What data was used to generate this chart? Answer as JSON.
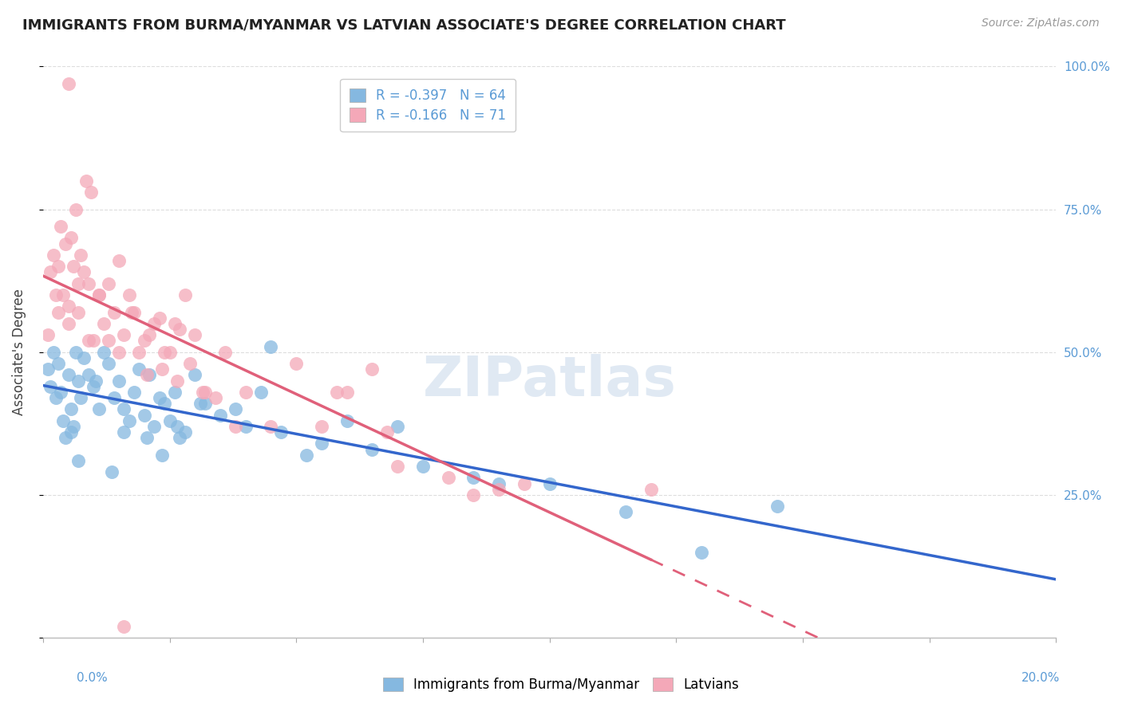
{
  "title": "IMMIGRANTS FROM BURMA/MYANMAR VS LATVIAN ASSOCIATE'S DEGREE CORRELATION CHART",
  "source": "Source: ZipAtlas.com",
  "ylabel": "Associate's Degree",
  "blue_label": "Immigrants from Burma/Myanmar",
  "pink_label": "Latvians",
  "blue_R": "-0.397",
  "blue_N": "64",
  "pink_R": "-0.166",
  "pink_N": "71",
  "blue_color": "#85b8e0",
  "pink_color": "#f4a8b8",
  "blue_line_color": "#3366cc",
  "pink_line_color": "#e0607a",
  "watermark": "ZIPatlas",
  "xlim": [
    0.0,
    20.0
  ],
  "ylim": [
    0.0,
    100.0
  ],
  "blue_scatter_x": [
    0.1,
    0.15,
    0.2,
    0.25,
    0.3,
    0.35,
    0.4,
    0.45,
    0.5,
    0.55,
    0.6,
    0.65,
    0.7,
    0.75,
    0.8,
    0.9,
    1.0,
    1.1,
    1.2,
    1.3,
    1.4,
    1.5,
    1.6,
    1.7,
    1.8,
    1.9,
    2.0,
    2.1,
    2.2,
    2.3,
    2.4,
    2.5,
    2.6,
    2.7,
    2.8,
    3.0,
    3.2,
    3.5,
    3.8,
    4.0,
    4.3,
    4.7,
    5.2,
    5.5,
    6.0,
    6.5,
    7.0,
    7.5,
    8.5,
    9.0,
    10.0,
    11.5,
    13.0,
    14.5,
    0.55,
    0.7,
    1.05,
    1.35,
    1.6,
    2.05,
    2.35,
    2.65,
    3.1,
    4.5
  ],
  "blue_scatter_y": [
    47,
    44,
    50,
    42,
    48,
    43,
    38,
    35,
    46,
    40,
    37,
    50,
    45,
    42,
    49,
    46,
    44,
    40,
    50,
    48,
    42,
    45,
    40,
    38,
    43,
    47,
    39,
    46,
    37,
    42,
    41,
    38,
    43,
    35,
    36,
    46,
    41,
    39,
    40,
    37,
    43,
    36,
    32,
    34,
    38,
    33,
    37,
    30,
    28,
    27,
    27,
    22,
    15,
    23,
    36,
    31,
    45,
    29,
    36,
    35,
    32,
    37,
    41,
    51
  ],
  "pink_scatter_x": [
    0.1,
    0.15,
    0.2,
    0.25,
    0.3,
    0.35,
    0.4,
    0.45,
    0.5,
    0.55,
    0.6,
    0.65,
    0.7,
    0.75,
    0.8,
    0.85,
    0.9,
    0.95,
    1.0,
    1.1,
    1.2,
    1.3,
    1.4,
    1.5,
    1.6,
    1.7,
    1.8,
    1.9,
    2.0,
    2.1,
    2.2,
    2.3,
    2.4,
    2.5,
    2.6,
    2.7,
    2.8,
    2.9,
    3.0,
    3.2,
    3.4,
    3.6,
    4.0,
    4.5,
    5.0,
    5.5,
    6.0,
    6.5,
    7.0,
    8.0,
    9.5,
    0.3,
    0.5,
    0.7,
    0.9,
    1.1,
    1.3,
    1.5,
    1.75,
    2.05,
    2.35,
    2.65,
    3.15,
    3.8,
    5.8,
    6.8,
    8.5,
    9.0,
    12.0,
    1.6,
    0.5
  ],
  "pink_scatter_y": [
    53,
    64,
    67,
    60,
    57,
    72,
    60,
    69,
    55,
    70,
    65,
    75,
    57,
    67,
    64,
    80,
    62,
    78,
    52,
    60,
    55,
    62,
    57,
    66,
    53,
    60,
    57,
    50,
    52,
    53,
    55,
    56,
    50,
    50,
    55,
    54,
    60,
    48,
    53,
    43,
    42,
    50,
    43,
    37,
    48,
    37,
    43,
    47,
    30,
    28,
    27,
    65,
    58,
    62,
    52,
    60,
    52,
    50,
    57,
    46,
    47,
    45,
    43,
    37,
    43,
    36,
    25,
    26,
    26,
    2,
    97
  ]
}
